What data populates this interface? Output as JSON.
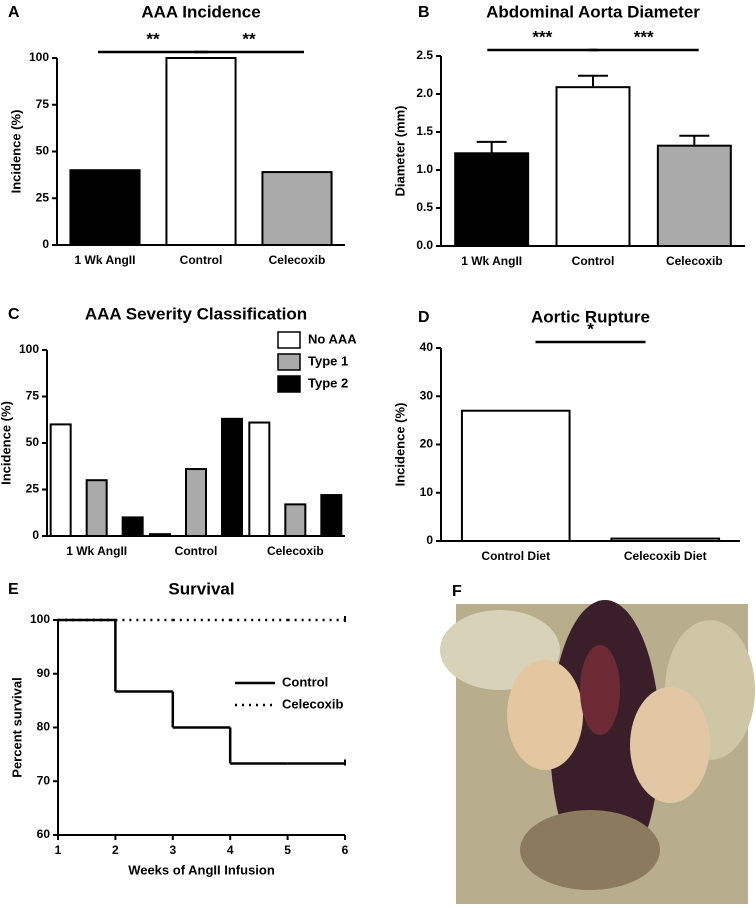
{
  "chart_data": [
    {
      "type": "bar",
      "panel": "A",
      "title": "AAA Incidence",
      "y_label": "Incidence (%)",
      "categories": [
        "1 Wk AngII",
        "Control",
        "Celecoxib"
      ],
      "values": [
        40,
        100,
        39
      ],
      "colors": [
        "#000000",
        "#ffffff",
        "#aaaaaa"
      ],
      "ylim": [
        0,
        100
      ],
      "yticks": [
        0,
        25,
        50,
        75,
        100
      ],
      "annotations": [
        "**",
        "**"
      ]
    },
    {
      "type": "bar",
      "panel": "B",
      "title": "Abdominal Aorta Diameter",
      "y_label": "Diameter (mm)",
      "categories": [
        "1 Wk AngII",
        "Control",
        "Celecoxib"
      ],
      "values": [
        1.22,
        2.09,
        1.32
      ],
      "errors": [
        0.15,
        0.15,
        0.13
      ],
      "colors": [
        "#000000",
        "#ffffff",
        "#aaaaaa"
      ],
      "ylim": [
        0,
        2.5
      ],
      "yticks": [
        {
          "value": 0,
          "label": "0.0"
        },
        0.5,
        {
          "value": 1,
          "label": "1.0"
        },
        1.5,
        {
          "value": 2,
          "label": "2.0"
        },
        2.5
      ],
      "annotations": [
        "***",
        "***"
      ]
    },
    {
      "type": "bar",
      "panel": "C",
      "title": "AAA Severity Classification",
      "y_label": "Incidence (%)",
      "categories": [
        "1 Wk AngII",
        "Control",
        "Celecoxib"
      ],
      "series": [
        {
          "name": "No AAA",
          "color": "#ffffff",
          "values": [
            60,
            1,
            61
          ]
        },
        {
          "name": "Type 1",
          "color": "#aaaaaa",
          "values": [
            30,
            36,
            17
          ]
        },
        {
          "name": "Type 2",
          "color": "#000000",
          "values": [
            10,
            63,
            22
          ]
        }
      ],
      "ylim": [
        0,
        100
      ],
      "yticks": [
        0,
        25,
        50,
        75,
        100
      ]
    },
    {
      "type": "bar",
      "panel": "D",
      "title": "Aortic Rupture",
      "y_label": "Incidence (%)",
      "categories": [
        "Control Diet",
        "Celecoxib Diet"
      ],
      "values": [
        27,
        0.5
      ],
      "colors": [
        "#ffffff",
        "#ffffff"
      ],
      "ylim": [
        0,
        40
      ],
      "yticks": [
        0,
        10,
        20,
        30,
        40
      ],
      "annotations": [
        "*"
      ]
    },
    {
      "type": "step",
      "panel": "E",
      "title": "Survival",
      "x_label": "Weeks of AngII Infusion",
      "y_label": "Percent survival",
      "x": [
        1,
        2,
        3,
        4,
        5,
        6
      ],
      "series": [
        {
          "name": "Control",
          "color": "#000000",
          "dash": false,
          "values": [
            100,
            86.7,
            80,
            73.3,
            73.3,
            73.3
          ]
        },
        {
          "name": "Celecoxib",
          "color": "#000000",
          "dash": true,
          "values": [
            100,
            100,
            100,
            100,
            100,
            100
          ]
        }
      ],
      "xlim": [
        1,
        6
      ],
      "xticks": [
        1,
        2,
        3,
        4,
        5,
        6
      ],
      "ylim": [
        60,
        100
      ],
      "yticks": [
        60,
        70,
        80,
        90,
        100
      ]
    }
  ],
  "photo": {
    "panel": "F"
  }
}
